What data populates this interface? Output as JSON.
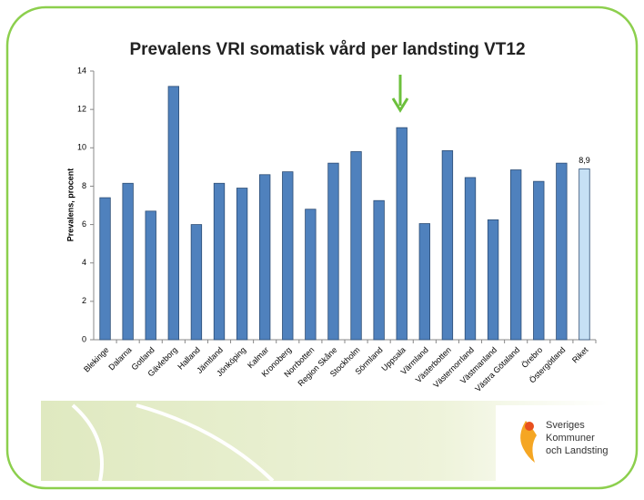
{
  "chart_data": {
    "type": "bar",
    "title": "Prevalens VRI somatisk vård per landsting VT12",
    "y_label": "Prevalens, procent",
    "categories": [
      "Blekinge",
      "Dalarna",
      "Gotland",
      "Gävleborg",
      "Halland",
      "Jämtland",
      "Jönköping",
      "Kalmar",
      "Kronoberg",
      "Norrbotten",
      "Region Skåne",
      "Stockholm",
      "Sörmland",
      "Uppsala",
      "Värmland",
      "Västerbotten",
      "Västernorrland",
      "Västmanland",
      "Västra Götaland",
      "Örebro",
      "Östergötland",
      "Riket"
    ],
    "values": [
      7.4,
      8.15,
      6.7,
      13.2,
      6.0,
      8.15,
      7.9,
      8.6,
      8.75,
      6.8,
      9.2,
      9.8,
      7.25,
      11.05,
      6.05,
      9.85,
      8.45,
      6.25,
      8.85,
      8.25,
      9.2,
      8.9
    ],
    "value_labels": [
      null,
      null,
      null,
      null,
      null,
      null,
      null,
      null,
      null,
      null,
      null,
      null,
      null,
      null,
      null,
      null,
      null,
      null,
      null,
      null,
      null,
      "8,9"
    ],
    "colors": [
      "#4f81bd",
      "#4f81bd",
      "#4f81bd",
      "#4f81bd",
      "#4f81bd",
      "#4f81bd",
      "#4f81bd",
      "#4f81bd",
      "#4f81bd",
      "#4f81bd",
      "#4f81bd",
      "#4f81bd",
      "#4f81bd",
      "#4f81bd",
      "#4f81bd",
      "#4f81bd",
      "#4f81bd",
      "#4f81bd",
      "#4f81bd",
      "#4f81bd",
      "#4f81bd",
      "#c6e0f5"
    ],
    "ylim": [
      0,
      14
    ],
    "yticks": [
      0,
      2,
      4,
      6,
      8,
      10,
      12,
      14
    ],
    "grid": false
  },
  "logo": {
    "lines": [
      "Sveriges",
      "Kommuner",
      "och Landsting"
    ]
  }
}
